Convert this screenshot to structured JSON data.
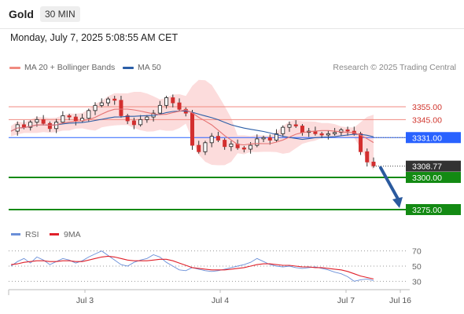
{
  "header": {
    "instrument": "Gold",
    "timeframe": "30 MIN"
  },
  "datetime": "Monday, July 7, 2025 5:08:55 AM CET",
  "legend": {
    "ma20_label": "MA 20 + Bollinger Bands",
    "ma50_label": "MA 50",
    "copyright": "Research © 2025 Trading Central"
  },
  "colors": {
    "ma20": "#e57373",
    "ma50": "#2b5ea7",
    "bands": "#fcd6d6",
    "up_candle": "#1a1a1a",
    "down_candle": "#d32f2f",
    "support": "#138a13",
    "resistance": "#f08a80",
    "pivot": "#2962ff",
    "arrow": "#2b5a9e",
    "rsi": "#6a8fd8",
    "rsi_ma": "#e0202a"
  },
  "chart_data": [
    {
      "type": "candlestick",
      "title": "",
      "xlabel": "",
      "ylabel": "",
      "ylim": [
        3264,
        3380
      ],
      "x_ticks": [
        "Jul 3",
        "Jul 4",
        "Jul 7",
        "Jul 16"
      ],
      "last_price": 3308.77,
      "series": [
        {
          "name": "MA 20",
          "kind": "ma20"
        },
        {
          "name": "Bollinger Bands",
          "kind": "bands"
        },
        {
          "name": "MA 50",
          "kind": "ma50"
        }
      ],
      "levels": [
        {
          "value": 3355.0,
          "label": "3355.00",
          "kind": "resistance"
        },
        {
          "value": 3345.0,
          "label": "3345.00",
          "kind": "resistance"
        },
        {
          "value": 3331.0,
          "label": "3331.00",
          "kind": "pivot"
        },
        {
          "value": 3300.0,
          "label": "3300.00",
          "kind": "support"
        },
        {
          "value": 3275.0,
          "label": "3275.00",
          "kind": "support"
        }
      ],
      "last_price_label": "3308.77",
      "forecast_arrow": {
        "from": 3308.77,
        "to": 3275.0
      },
      "close_path": [
        3336,
        3341,
        3339,
        3343,
        3345,
        3342,
        3338,
        3343,
        3348,
        3347,
        3344,
        3346,
        3352,
        3356,
        3358,
        3361,
        3360,
        3348,
        3344,
        3341,
        3345,
        3347,
        3350,
        3356,
        3362,
        3358,
        3353,
        3350,
        3325,
        3320,
        3327,
        3332,
        3329,
        3324,
        3326,
        3323,
        3322,
        3325,
        3330,
        3331,
        3329,
        3334,
        3339,
        3341,
        3340,
        3335,
        3336,
        3334,
        3333,
        3334,
        3335,
        3337,
        3336,
        3334,
        3320,
        3312,
        3309
      ],
      "close_path_note": ""
    },
    {
      "type": "line",
      "title": "",
      "ylim": [
        20,
        80
      ],
      "y_ticks": [
        70,
        50,
        30
      ],
      "series": [
        {
          "name": "RSI"
        },
        {
          "name": "9MA"
        }
      ],
      "rsi": [
        50,
        56,
        60,
        54,
        62,
        58,
        52,
        56,
        60,
        58,
        54,
        57,
        62,
        66,
        70,
        64,
        58,
        52,
        50,
        55,
        58,
        60,
        65,
        62,
        55,
        50,
        45,
        44,
        48,
        46,
        44,
        43,
        44,
        46,
        48,
        50,
        52,
        55,
        60,
        56,
        52,
        50,
        49,
        50,
        48,
        47,
        48,
        49,
        47,
        45,
        42,
        40,
        36,
        30,
        32,
        33,
        31
      ],
      "rsi_ma": [
        52,
        53,
        55,
        56,
        57,
        57,
        56,
        56,
        57,
        57,
        56,
        56,
        58,
        60,
        62,
        63,
        62,
        60,
        58,
        57,
        57,
        57,
        58,
        59,
        59,
        57,
        54,
        51,
        48,
        47,
        46,
        45,
        45,
        45,
        46,
        47,
        48,
        50,
        52,
        53,
        53,
        52,
        51,
        51,
        50,
        49,
        49,
        48,
        48,
        47,
        46,
        45,
        43,
        40,
        37,
        35,
        33
      ]
    }
  ]
}
